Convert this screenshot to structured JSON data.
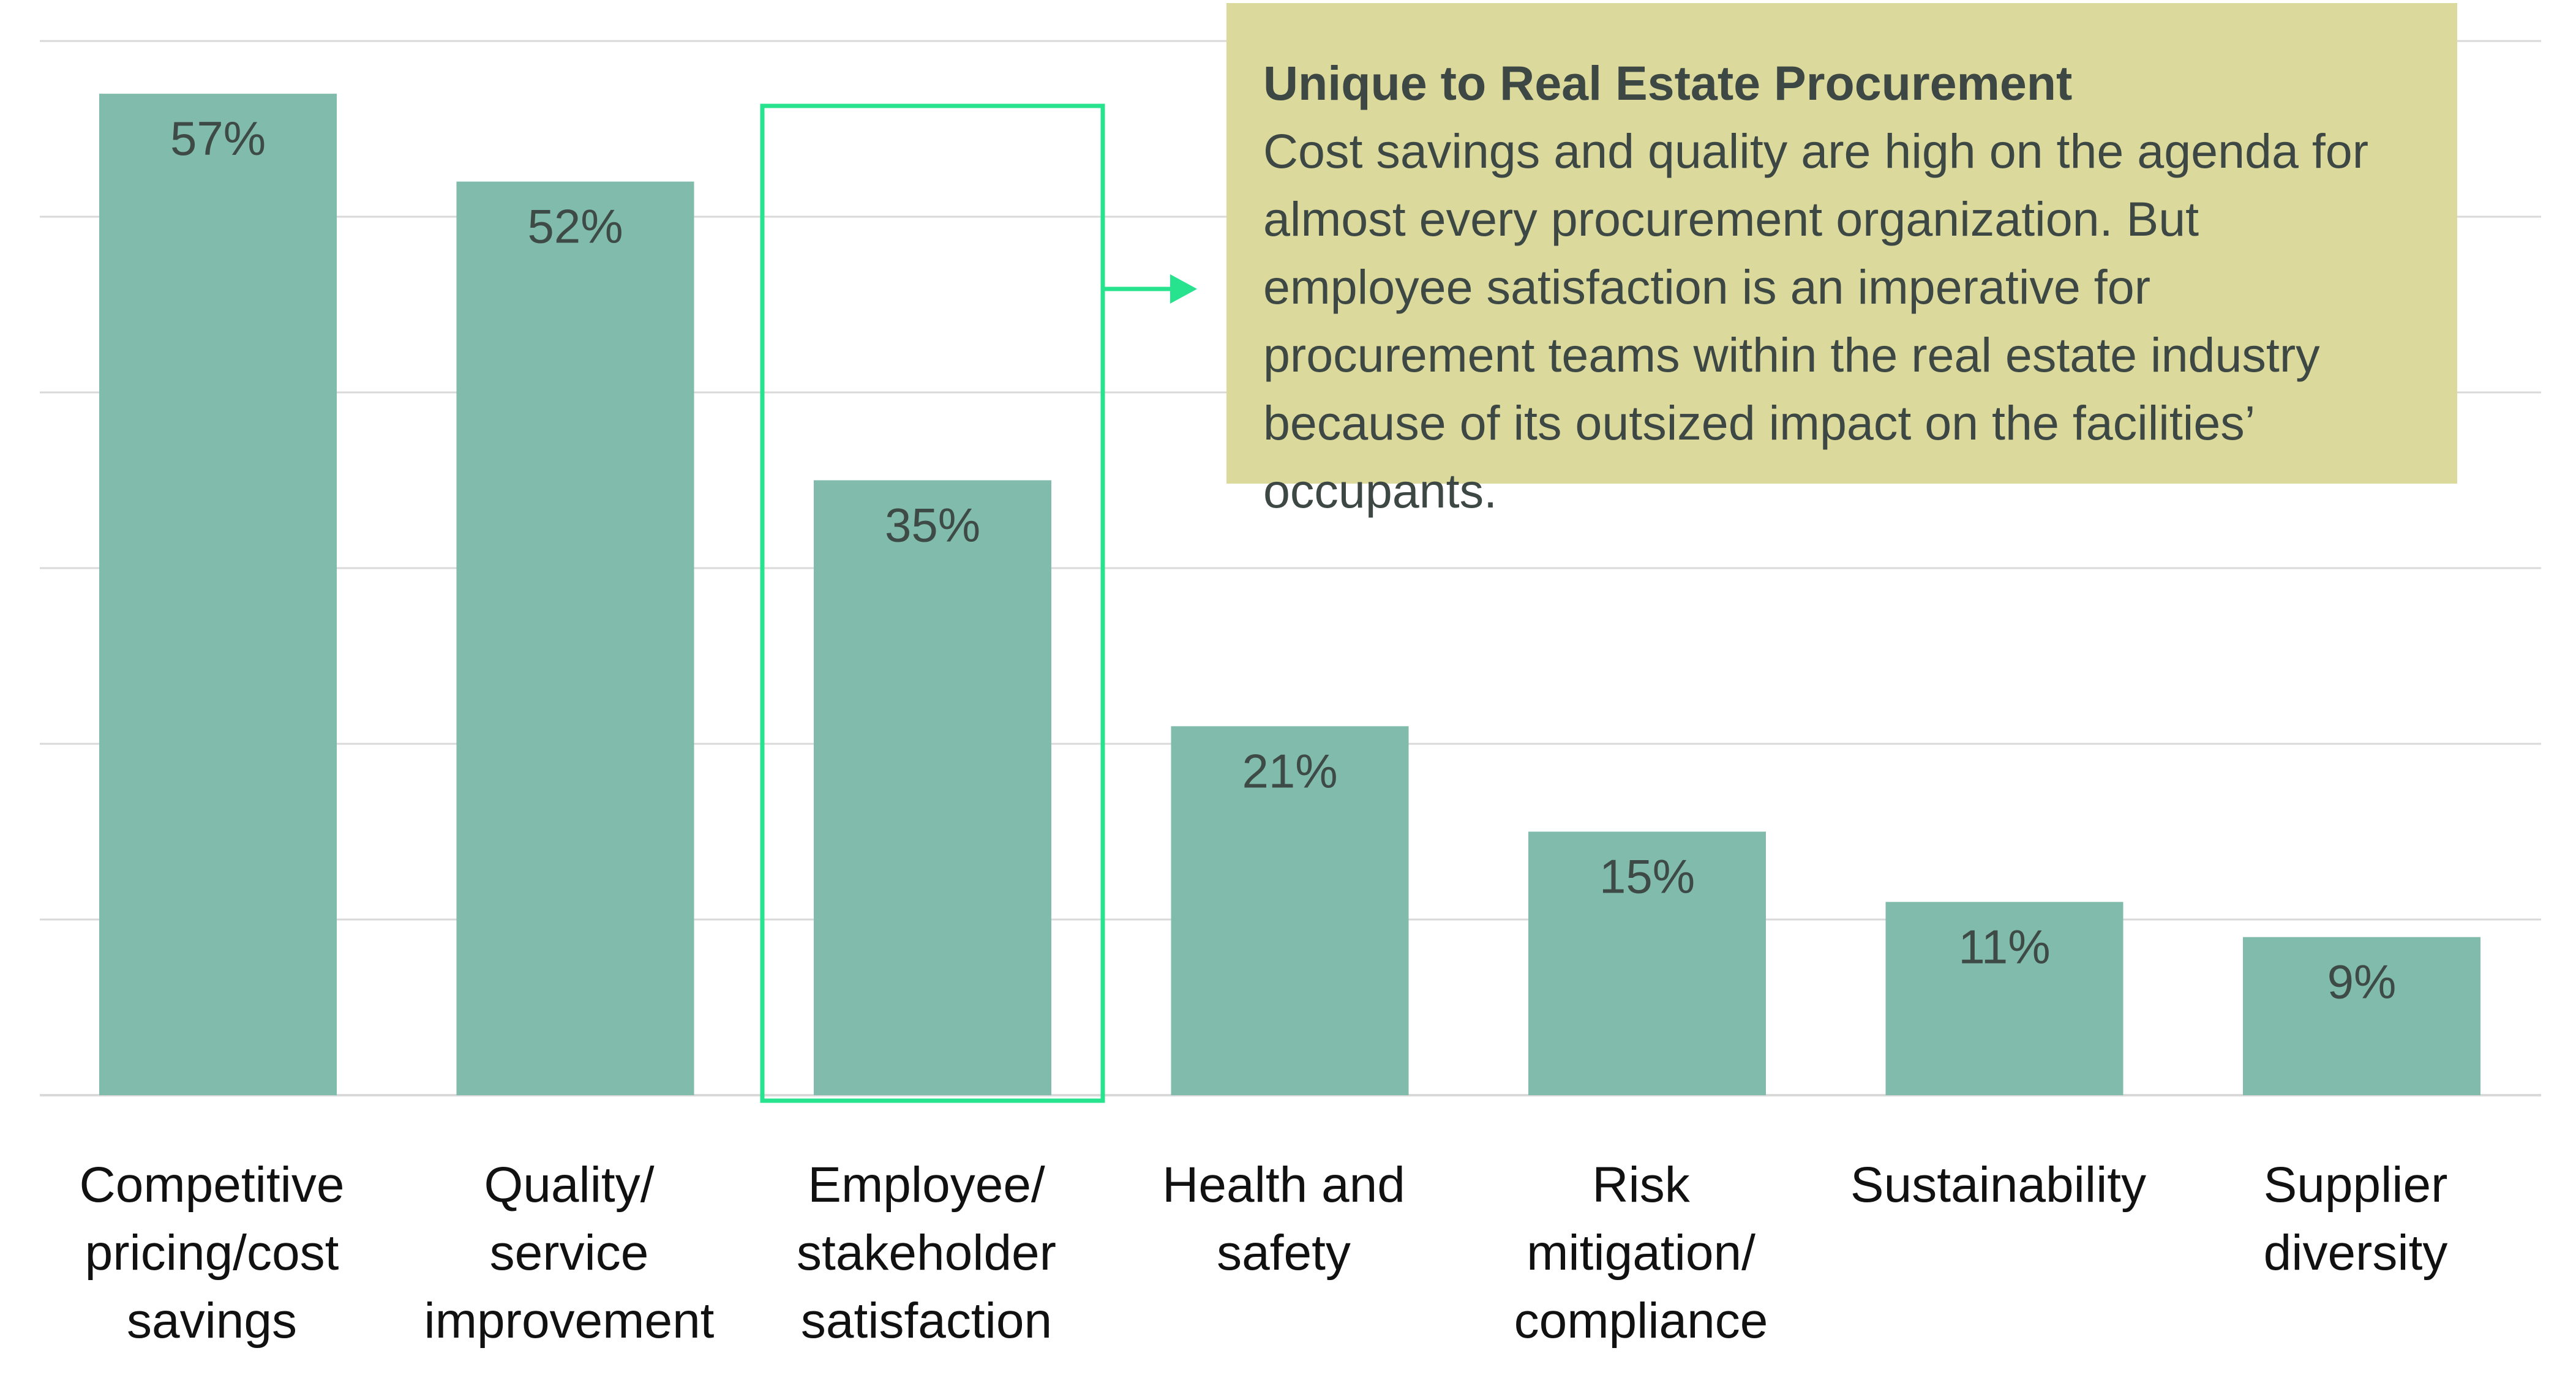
{
  "colors": {
    "bar": "#81bbab",
    "highlight_frame": "#28e38e",
    "callout_background": "#dbd99b",
    "gridline": "#d9d9d9"
  },
  "chart_data": {
    "type": "bar",
    "title": "",
    "xlabel": "",
    "ylabel": "",
    "ylim": [
      0,
      60
    ],
    "grid": true,
    "categories": [
      "Competitive pricing/cost savings",
      "Quality/ service improvement",
      "Employee/ stakeholder satisfaction",
      "Health and safety",
      "Risk mitigation/ compliance",
      "Sustainability",
      "Supplier diversity"
    ],
    "category_lines": [
      [
        "Competitive",
        "pricing/cost",
        "savings"
      ],
      [
        "Quality/",
        "service",
        "improvement"
      ],
      [
        "Employee/",
        "stakeholder",
        "satisfaction"
      ],
      [
        "Health and",
        "safety"
      ],
      [
        "Risk",
        "mitigation/",
        "compliance"
      ],
      [
        "Sustainability"
      ],
      [
        "Supplier",
        "diversity"
      ]
    ],
    "values": [
      57,
      52,
      35,
      21,
      15,
      11,
      9
    ],
    "data_labels": [
      "57%",
      "52%",
      "35%",
      "21%",
      "15%",
      "11%",
      "9%"
    ],
    "highlighted_category": "Employee/ stakeholder satisfaction"
  },
  "callout": {
    "title": "Unique to Real Estate Procurement",
    "body": "Cost savings and quality are high on the agenda for almost every procurement organization. But employee satisfaction is an imperative for procurement teams within the real estate industry because of its outsized impact on the facilities’ occupants."
  }
}
